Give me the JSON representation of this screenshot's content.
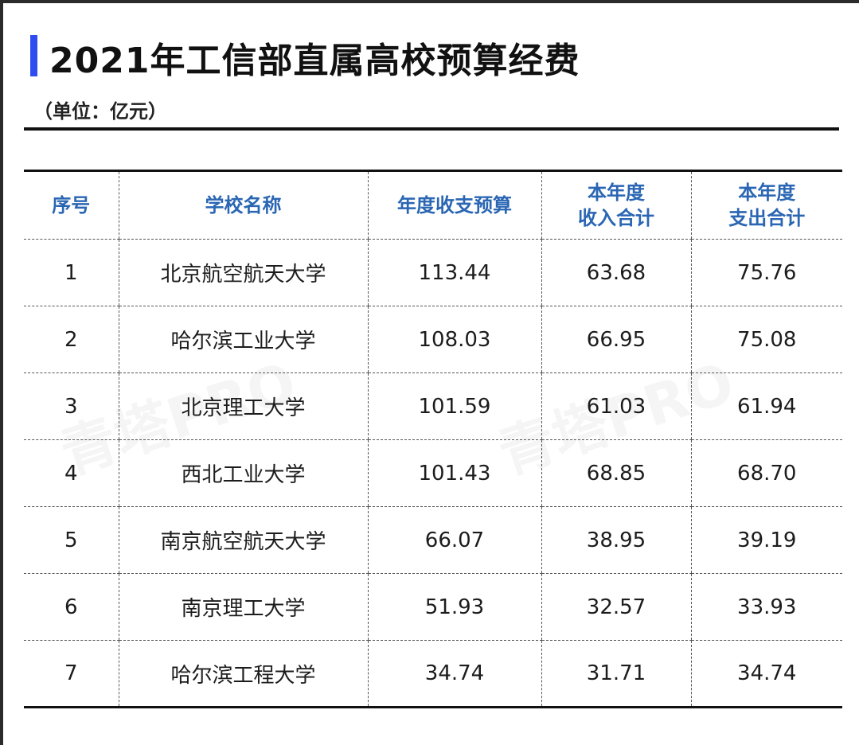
{
  "title": "2021年工信部直属高校预算经费",
  "unit": "（单位：亿元）",
  "watermark": "青塔PRO",
  "colors": {
    "accent_bar": "#2f4cf0",
    "header_text": "#2a66b3"
  },
  "chart_data": {
    "type": "table",
    "columns": [
      "序号",
      "学校名称",
      "年度收支预算",
      "本年度\n收入合计",
      "本年度\n支出合计"
    ],
    "rows": [
      [
        "1",
        "北京航空航天大学",
        "113.44",
        "63.68",
        "75.76"
      ],
      [
        "2",
        "哈尔滨工业大学",
        "108.03",
        "66.95",
        "75.08"
      ],
      [
        "3",
        "北京理工大学",
        "101.59",
        "61.03",
        "61.94"
      ],
      [
        "4",
        "西北工业大学",
        "101.43",
        "68.85",
        "68.70"
      ],
      [
        "5",
        "南京航空航天大学",
        "66.07",
        "38.95",
        "39.19"
      ],
      [
        "6",
        "南京理工大学",
        "51.93",
        "32.57",
        "33.93"
      ],
      [
        "7",
        "哈尔滨工程大学",
        "34.74",
        "31.71",
        "34.74"
      ]
    ]
  }
}
